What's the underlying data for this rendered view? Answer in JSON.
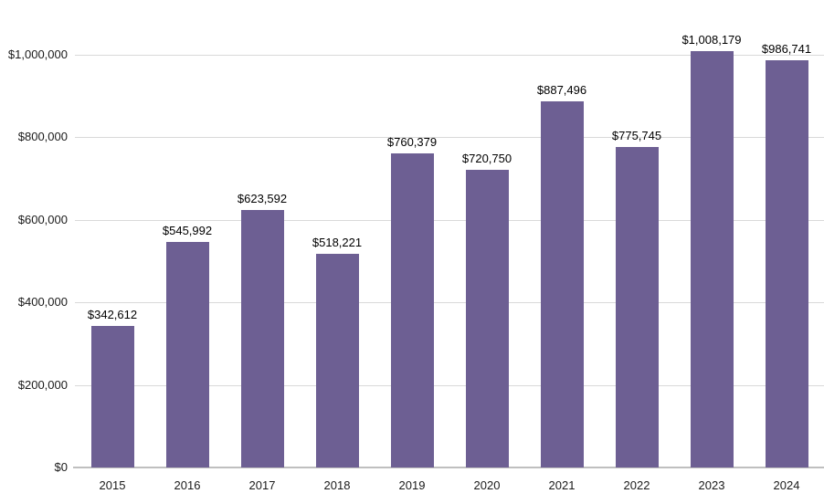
{
  "chart_data": {
    "type": "bar",
    "categories": [
      "2015",
      "2016",
      "2017",
      "2018",
      "2019",
      "2020",
      "2021",
      "2022",
      "2023",
      "2024"
    ],
    "values": [
      342612,
      545992,
      623592,
      518221,
      760379,
      720750,
      887496,
      775745,
      1008179,
      986741
    ],
    "data_labels": [
      "$342,612",
      "$545,992",
      "$623,592",
      "$518,221",
      "$760,379",
      "$720,750",
      "$887,496",
      "$775,745",
      "$1,008,179",
      "$986,741"
    ],
    "title": "",
    "xlabel": "",
    "ylabel": "",
    "ylim": [
      0,
      1000000
    ],
    "ytick_step": 200000,
    "ytick_values": [
      0,
      200000,
      400000,
      600000,
      800000,
      1000000
    ],
    "ytick_labels": [
      "$0",
      "$200,000",
      "$400,000",
      "$600,000",
      "$800,000",
      "$1,000,000"
    ],
    "grid": true,
    "legend": false,
    "bar_color": "#6d5f93"
  },
  "colors": {
    "bar": "#6d5f93",
    "gridline": "#d9d9d9",
    "axis_line": "#bfbfbf",
    "label_text": "#000000",
    "background": "#ffffff"
  }
}
